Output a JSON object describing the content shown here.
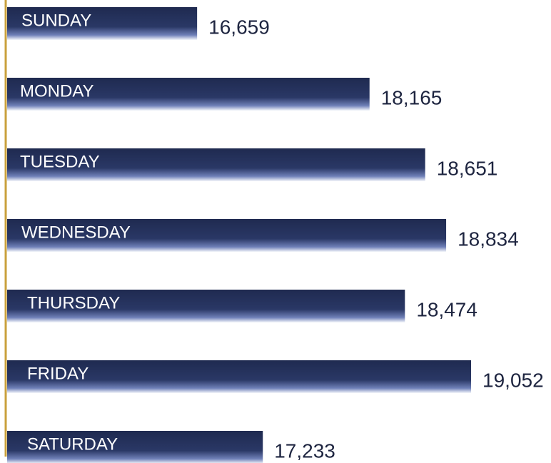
{
  "chart_data": {
    "type": "bar",
    "orientation": "horizontal",
    "categories": [
      "SUNDAY",
      "MONDAY",
      "TUESDAY",
      "WEDNESDAY",
      "THURSDAY",
      "FRIDAY",
      "SATURDAY"
    ],
    "values": [
      16659,
      18165,
      18651,
      18834,
      18474,
      19052,
      17233
    ],
    "value_labels": [
      "16,659",
      "18,165",
      "18,651",
      "18,834",
      "18,474",
      "19,052",
      "17,233"
    ],
    "color": "#1f2a50",
    "xlim": [
      15000,
      19700
    ]
  }
}
